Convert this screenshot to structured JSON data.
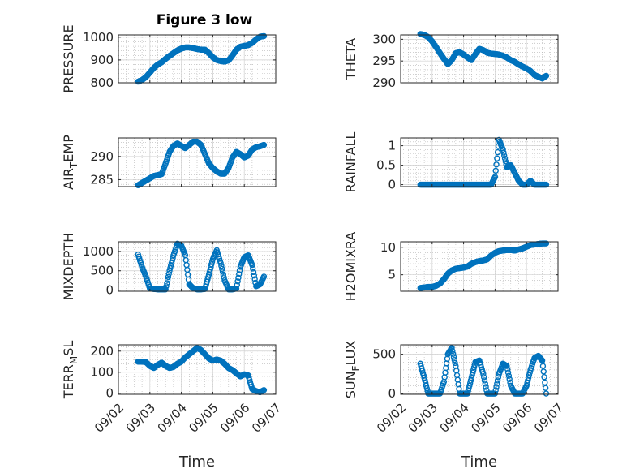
{
  "figure": {
    "title": "Figure 3 low"
  },
  "chart_data": [
    {
      "type": "scatter",
      "ylabel": "PRESSURE",
      "ylabel_sub": "",
      "ylabel_suffix": "",
      "xlim": [
        "09/02",
        "09/07"
      ],
      "ylim": [
        800,
        1010
      ],
      "yticks": [
        800,
        900,
        1000
      ],
      "grid": true,
      "title": "Figure 3 low",
      "xlabel": "",
      "x": [
        "09/02 15:00",
        "09/02 18:00",
        "09/02 21:00",
        "09/03 00:00",
        "09/03 03:00",
        "09/03 06:00",
        "09/03 09:00",
        "09/03 12:00",
        "09/03 15:00",
        "09/03 18:00",
        "09/03 21:00",
        "09/04 00:00",
        "09/04 03:00",
        "09/04 06:00",
        "09/04 09:00",
        "09/04 12:00",
        "09/04 15:00",
        "09/04 18:00",
        "09/04 21:00",
        "09/05 00:00",
        "09/05 03:00",
        "09/05 06:00",
        "09/05 09:00",
        "09/05 12:00",
        "09/05 15:00",
        "09/05 18:00",
        "09/05 21:00",
        "09/06 00:00",
        "09/06 03:00",
        "09/06 06:00",
        "09/06 09:00",
        "09/06 12:00",
        "09/06 15:00"
      ],
      "values": [
        805,
        812,
        825,
        845,
        865,
        880,
        890,
        905,
        918,
        930,
        942,
        950,
        955,
        955,
        952,
        948,
        945,
        945,
        930,
        912,
        900,
        895,
        893,
        898,
        920,
        945,
        958,
        962,
        965,
        975,
        990,
        1002,
        1005
      ]
    },
    {
      "type": "scatter",
      "ylabel": "THETA",
      "ylabel_sub": "",
      "ylabel_suffix": "",
      "xlim": [
        "09/02",
        "09/07"
      ],
      "ylim": [
        290,
        301
      ],
      "yticks": [
        290,
        295,
        300
      ],
      "grid": true,
      "xlabel": "",
      "x": [
        "09/02 15:00",
        "09/02 18:00",
        "09/02 21:00",
        "09/03 00:00",
        "09/03 03:00",
        "09/03 06:00",
        "09/03 09:00",
        "09/03 12:00",
        "09/03 15:00",
        "09/03 18:00",
        "09/03 21:00",
        "09/04 00:00",
        "09/04 03:00",
        "09/04 06:00",
        "09/04 09:00",
        "09/04 12:00",
        "09/04 15:00",
        "09/04 18:00",
        "09/04 21:00",
        "09/05 00:00",
        "09/05 03:00",
        "09/05 06:00",
        "09/05 09:00",
        "09/05 12:00",
        "09/05 15:00",
        "09/05 18:00",
        "09/05 21:00",
        "09/06 00:00",
        "09/06 03:00",
        "09/06 06:00",
        "09/06 09:00",
        "09/06 12:00",
        "09/06 15:00"
      ],
      "values": [
        301.2,
        301,
        300.5,
        299.5,
        298.2,
        296.8,
        295.5,
        294.3,
        295.2,
        296.8,
        297,
        296.5,
        295.8,
        295.2,
        296.6,
        297.8,
        297.5,
        296.9,
        296.7,
        296.6,
        296.5,
        296.2,
        295.8,
        295.2,
        294.8,
        294.2,
        293.7,
        293.3,
        292.7,
        291.8,
        291.4,
        291,
        291.6
      ]
    },
    {
      "type": "scatter",
      "ylabel": "AIR",
      "ylabel_sub": "T",
      "ylabel_suffix": "EMP",
      "xlim": [
        "09/02",
        "09/07"
      ],
      "ylim": [
        283.5,
        294
      ],
      "yticks": [
        285,
        290
      ],
      "grid": true,
      "xlabel": "",
      "x": [
        "09/02 15:00",
        "09/02 18:00",
        "09/02 21:00",
        "09/03 00:00",
        "09/03 03:00",
        "09/03 06:00",
        "09/03 09:00",
        "09/03 12:00",
        "09/03 15:00",
        "09/03 18:00",
        "09/03 21:00",
        "09/04 00:00",
        "09/04 03:00",
        "09/04 06:00",
        "09/04 09:00",
        "09/04 12:00",
        "09/04 15:00",
        "09/04 18:00",
        "09/04 21:00",
        "09/05 00:00",
        "09/05 03:00",
        "09/05 06:00",
        "09/05 09:00",
        "09/05 12:00",
        "09/05 15:00",
        "09/05 18:00",
        "09/05 21:00",
        "09/06 00:00",
        "09/06 03:00",
        "09/06 06:00",
        "09/06 09:00",
        "09/06 12:00",
        "09/06 15:00"
      ],
      "values": [
        283.8,
        284.3,
        284.8,
        285.3,
        285.8,
        286,
        286.2,
        288.5,
        291,
        292.3,
        292.8,
        292.3,
        291.8,
        292.5,
        293.2,
        293.2,
        292.5,
        290.5,
        288.5,
        287.5,
        286.8,
        286.3,
        286.3,
        287.5,
        289.8,
        291,
        290.5,
        289.8,
        290.2,
        291.5,
        292,
        292.2,
        292.5
      ]
    },
    {
      "type": "scatter",
      "ylabel": "RAINFALL",
      "ylabel_sub": "",
      "ylabel_suffix": "",
      "xlim": [
        "09/02",
        "09/07"
      ],
      "ylim": [
        -0.05,
        1.2
      ],
      "yticks": [
        0,
        0.5,
        1
      ],
      "grid": true,
      "xlabel": "",
      "x": [
        "09/02 15:00",
        "09/02 18:00",
        "09/02 21:00",
        "09/03 00:00",
        "09/03 03:00",
        "09/03 06:00",
        "09/03 09:00",
        "09/03 12:00",
        "09/03 15:00",
        "09/03 18:00",
        "09/03 21:00",
        "09/04 00:00",
        "09/04 03:00",
        "09/04 06:00",
        "09/04 09:00",
        "09/04 12:00",
        "09/04 15:00",
        "09/04 18:00",
        "09/04 21:00",
        "09/05 00:00",
        "09/05 03:00",
        "09/05 06:00",
        "09/05 09:00",
        "09/05 12:00",
        "09/05 15:00",
        "09/05 18:00",
        "09/05 21:00",
        "09/06 00:00",
        "09/06 03:00",
        "09/06 06:00",
        "09/06 09:00",
        "09/06 12:00",
        "09/06 15:00"
      ],
      "values": [
        0,
        0,
        0,
        0,
        0,
        0,
        0,
        0,
        0,
        0,
        0,
        0,
        0,
        0,
        0,
        0,
        0,
        0,
        0,
        0.2,
        1.15,
        0.9,
        0.45,
        0.5,
        0.3,
        0.1,
        0,
        0,
        0.1,
        0,
        0,
        0,
        0
      ]
    },
    {
      "type": "scatter",
      "ylabel": "MIXDEPTH",
      "ylabel_sub": "",
      "ylabel_suffix": "",
      "xlim": [
        "09/02",
        "09/07"
      ],
      "ylim": [
        -30,
        1250
      ],
      "yticks": [
        0,
        500,
        1000
      ],
      "grid": true,
      "xlabel": "",
      "x": [
        "09/02 15:00",
        "09/02 18:00",
        "09/02 21:00",
        "09/03 00:00",
        "09/03 03:00",
        "09/03 06:00",
        "09/03 09:00",
        "09/03 12:00",
        "09/03 15:00",
        "09/03 18:00",
        "09/03 21:00",
        "09/04 00:00",
        "09/04 03:00",
        "09/04 06:00",
        "09/04 09:00",
        "09/04 12:00",
        "09/04 15:00",
        "09/04 18:00",
        "09/04 21:00",
        "09/05 00:00",
        "09/05 03:00",
        "09/05 06:00",
        "09/05 09:00",
        "09/05 12:00",
        "09/05 15:00",
        "09/05 18:00",
        "09/05 21:00",
        "09/06 00:00",
        "09/06 03:00",
        "09/06 06:00",
        "09/06 09:00",
        "09/06 12:00",
        "09/06 15:00"
      ],
      "values": [
        920,
        600,
        350,
        40,
        30,
        20,
        20,
        20,
        500,
        900,
        1200,
        1150,
        900,
        150,
        50,
        20,
        20,
        30,
        400,
        800,
        1030,
        700,
        250,
        20,
        20,
        40,
        600,
        850,
        900,
        650,
        100,
        150,
        350
      ]
    },
    {
      "type": "scatter",
      "ylabel": "H2OMIXRA",
      "ylabel_sub": "",
      "ylabel_suffix": "",
      "xlim": [
        "09/02",
        "09/07"
      ],
      "ylim": [
        2,
        11
      ],
      "yticks": [
        5,
        10
      ],
      "grid": true,
      "xlabel": "",
      "x": [
        "09/02 15:00",
        "09/02 18:00",
        "09/02 21:00",
        "09/03 00:00",
        "09/03 03:00",
        "09/03 06:00",
        "09/03 09:00",
        "09/03 12:00",
        "09/03 15:00",
        "09/03 18:00",
        "09/03 21:00",
        "09/04 00:00",
        "09/04 03:00",
        "09/04 06:00",
        "09/04 09:00",
        "09/04 12:00",
        "09/04 15:00",
        "09/04 18:00",
        "09/04 21:00",
        "09/05 00:00",
        "09/05 03:00",
        "09/05 06:00",
        "09/05 09:00",
        "09/05 12:00",
        "09/05 15:00",
        "09/05 18:00",
        "09/05 21:00",
        "09/06 00:00",
        "09/06 03:00",
        "09/06 06:00",
        "09/06 09:00",
        "09/06 12:00",
        "09/06 15:00"
      ],
      "values": [
        2.6,
        2.7,
        2.8,
        2.8,
        3,
        3.4,
        4.2,
        5.2,
        5.8,
        6.1,
        6.2,
        6.3,
        6.5,
        7,
        7.3,
        7.5,
        7.6,
        7.8,
        8.5,
        9,
        9.3,
        9.4,
        9.5,
        9.5,
        9.4,
        9.6,
        9.8,
        10.1,
        10.4,
        10.5,
        10.6,
        10.7,
        10.7
      ]
    },
    {
      "type": "scatter",
      "ylabel": "TERR",
      "ylabel_sub": "M",
      "ylabel_suffix": "SL",
      "xlim": [
        "09/02",
        "09/07"
      ],
      "ylim": [
        -5,
        230
      ],
      "yticks": [
        0,
        100,
        200
      ],
      "grid": true,
      "xlabel": "Time",
      "xticks": [
        "09/02",
        "09/03",
        "09/04",
        "09/05",
        "09/06",
        "09/07"
      ],
      "x": [
        "09/02 15:00",
        "09/02 18:00",
        "09/02 21:00",
        "09/03 00:00",
        "09/03 03:00",
        "09/03 06:00",
        "09/03 09:00",
        "09/03 12:00",
        "09/03 15:00",
        "09/03 18:00",
        "09/03 21:00",
        "09/04 00:00",
        "09/04 03:00",
        "09/04 06:00",
        "09/04 09:00",
        "09/04 12:00",
        "09/04 15:00",
        "09/04 18:00",
        "09/04 21:00",
        "09/05 00:00",
        "09/05 03:00",
        "09/05 06:00",
        "09/05 09:00",
        "09/05 12:00",
        "09/05 15:00",
        "09/05 18:00",
        "09/05 21:00",
        "09/06 00:00",
        "09/06 03:00",
        "09/06 06:00",
        "09/06 09:00",
        "09/06 12:00",
        "09/06 15:00"
      ],
      "values": [
        150,
        150,
        148,
        130,
        120,
        135,
        145,
        130,
        120,
        125,
        140,
        150,
        170,
        185,
        200,
        215,
        205,
        185,
        165,
        155,
        160,
        155,
        140,
        120,
        110,
        95,
        80,
        90,
        85,
        20,
        10,
        5,
        15
      ]
    },
    {
      "type": "scatter",
      "ylabel": "SUN",
      "ylabel_sub": "F",
      "ylabel_suffix": "LUX",
      "xlim": [
        "09/02",
        "09/07"
      ],
      "ylim": [
        -10,
        620
      ],
      "yticks": [
        0,
        500
      ],
      "grid": true,
      "xlabel": "Time",
      "xticks": [
        "09/02",
        "09/03",
        "09/04",
        "09/05",
        "09/06",
        "09/07"
      ],
      "x": [
        "09/02 15:00",
        "09/02 18:00",
        "09/02 21:00",
        "09/03 00:00",
        "09/03 03:00",
        "09/03 06:00",
        "09/03 09:00",
        "09/03 12:00",
        "09/03 15:00",
        "09/03 18:00",
        "09/03 21:00",
        "09/04 00:00",
        "09/04 03:00",
        "09/04 06:00",
        "09/04 09:00",
        "09/04 12:00",
        "09/04 15:00",
        "09/04 18:00",
        "09/04 21:00",
        "09/05 00:00",
        "09/05 03:00",
        "09/05 06:00",
        "09/05 09:00",
        "09/05 12:00",
        "09/05 15:00",
        "09/05 18:00",
        "09/05 21:00",
        "09/06 00:00",
        "09/06 03:00",
        "09/06 06:00",
        "09/06 09:00",
        "09/06 12:00",
        "09/06 15:00"
      ],
      "values": [
        380,
        200,
        0,
        0,
        0,
        0,
        150,
        500,
        580,
        350,
        0,
        0,
        0,
        200,
        400,
        420,
        250,
        0,
        0,
        0,
        250,
        380,
        350,
        100,
        0,
        0,
        0,
        100,
        300,
        450,
        480,
        420,
        0
      ]
    }
  ],
  "colors": {
    "marker": "#0072BD",
    "axis": "#262626",
    "grid": "#b4b4b4"
  }
}
